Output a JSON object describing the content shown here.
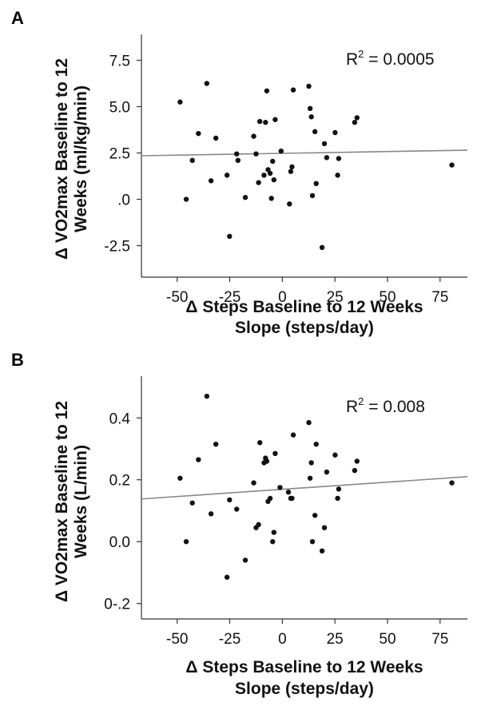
{
  "chart_data": [
    {
      "type": "scatter",
      "panel": "A",
      "r2_label": "R",
      "r2_value": " = 0.0005",
      "r2_sup": "2",
      "xlabel_line1": "Δ Steps Baseline to 12 Weeks",
      "xlabel_line2": "Slope (steps/day)",
      "ylabel_line1": "Δ VO2max Baseline to 12",
      "ylabel_line2": "Weeks (ml/kg/min)",
      "xlim": [
        -67,
        88
      ],
      "ylim": [
        -4.2,
        8.9
      ],
      "xticks": [
        -50,
        -25,
        0,
        25,
        50,
        75
      ],
      "xtick_labels": [
        "-50",
        "-25",
        "0",
        "25",
        "50",
        "75"
      ],
      "yticks": [
        7.5,
        5.0,
        2.5,
        0.0,
        -2.5
      ],
      "ytick_labels": [
        "7.5",
        "5.0",
        "2.5",
        ".0",
        "-2.5"
      ],
      "fit_line": {
        "x": [
          -67,
          88
        ],
        "y": [
          2.35,
          2.65
        ]
      },
      "points": [
        [
          -48.6,
          5.25
        ],
        [
          -45.7,
          0.0
        ],
        [
          -42.8,
          2.1
        ],
        [
          -39.9,
          3.55
        ],
        [
          -35.9,
          6.25
        ],
        [
          -33.9,
          1.0
        ],
        [
          -31.6,
          3.3
        ],
        [
          -26.3,
          1.3
        ],
        [
          -25.1,
          -2.0
        ],
        [
          -21.7,
          2.45
        ],
        [
          -21.1,
          2.1
        ],
        [
          -17.6,
          0.1
        ],
        [
          -13.6,
          3.4
        ],
        [
          -12.5,
          2.45
        ],
        [
          -11.3,
          0.9
        ],
        [
          -10.7,
          4.2
        ],
        [
          -8.7,
          1.3
        ],
        [
          -8.0,
          4.15
        ],
        [
          -7.4,
          5.85
        ],
        [
          -6.8,
          1.6
        ],
        [
          -5.8,
          1.4
        ],
        [
          -5.2,
          0.05
        ],
        [
          -4.6,
          2.05
        ],
        [
          -4.0,
          1.05
        ],
        [
          -3.4,
          4.3
        ],
        [
          -0.6,
          2.6
        ],
        [
          3.4,
          -0.25
        ],
        [
          4.0,
          1.5
        ],
        [
          4.6,
          1.75
        ],
        [
          5.2,
          5.9
        ],
        [
          12.6,
          6.1
        ],
        [
          13.2,
          4.9
        ],
        [
          13.8,
          4.45
        ],
        [
          14.3,
          0.2
        ],
        [
          15.5,
          3.65
        ],
        [
          16.1,
          0.85
        ],
        [
          18.9,
          -2.6
        ],
        [
          20.0,
          3.0
        ],
        [
          21.1,
          2.25
        ],
        [
          25.1,
          3.6
        ],
        [
          26.8,
          2.2
        ],
        [
          26.3,
          1.3
        ],
        [
          34.4,
          4.15
        ],
        [
          35.5,
          4.4
        ],
        [
          80.6,
          1.85
        ]
      ]
    },
    {
      "type": "scatter",
      "panel": "B",
      "r2_label": "R",
      "r2_value": " = 0.008",
      "r2_sup": "2",
      "xlabel_line1": "Δ Steps Baseline to 12 Weeks",
      "xlabel_line2": "Slope (steps/day)",
      "ylabel_line1": "Δ VO2max Baseline to 12",
      "ylabel_line2": "Weeks (L/min)",
      "xlim": [
        -67,
        88
      ],
      "ylim": [
        -0.25,
        0.535
      ],
      "xticks": [
        -50,
        -25,
        0,
        25,
        50,
        75
      ],
      "xtick_labels": [
        "-50",
        "-25",
        "0",
        "25",
        "50",
        "75"
      ],
      "yticks": [
        0.4,
        0.2,
        0.0,
        -0.2
      ],
      "ytick_labels": [
        "0.4",
        "0.2",
        "0.0",
        "0-.2"
      ],
      "fit_line": {
        "x": [
          -67,
          88
        ],
        "y": [
          0.138,
          0.21
        ]
      },
      "points": [
        [
          -48.6,
          0.205
        ],
        [
          -45.7,
          0.0
        ],
        [
          -42.8,
          0.125
        ],
        [
          -39.9,
          0.265
        ],
        [
          -35.9,
          0.47
        ],
        [
          -33.9,
          0.09
        ],
        [
          -31.6,
          0.315
        ],
        [
          -26.3,
          -0.115
        ],
        [
          -25.1,
          0.135
        ],
        [
          -21.7,
          0.105
        ],
        [
          -17.6,
          -0.06
        ],
        [
          -13.6,
          0.19
        ],
        [
          -12.5,
          0.045
        ],
        [
          -11.3,
          0.055
        ],
        [
          -10.7,
          0.32
        ],
        [
          -8.7,
          0.255
        ],
        [
          -8.0,
          0.27
        ],
        [
          -7.4,
          0.26
        ],
        [
          -6.8,
          0.13
        ],
        [
          -5.8,
          0.14
        ],
        [
          -4.6,
          0.0
        ],
        [
          -4.0,
          0.03
        ],
        [
          -3.4,
          0.285
        ],
        [
          -1.1,
          0.175
        ],
        [
          2.9,
          0.16
        ],
        [
          4.0,
          0.14
        ],
        [
          4.6,
          0.14
        ],
        [
          5.2,
          0.345
        ],
        [
          12.6,
          0.385
        ],
        [
          13.2,
          0.205
        ],
        [
          13.8,
          0.255
        ],
        [
          14.3,
          0.0
        ],
        [
          15.5,
          0.085
        ],
        [
          16.1,
          0.315
        ],
        [
          18.9,
          -0.03
        ],
        [
          20.0,
          0.045
        ],
        [
          21.1,
          0.225
        ],
        [
          25.1,
          0.28
        ],
        [
          26.3,
          0.14
        ],
        [
          26.8,
          0.17
        ],
        [
          34.4,
          0.23
        ],
        [
          35.5,
          0.26
        ],
        [
          80.6,
          0.19
        ]
      ]
    }
  ]
}
